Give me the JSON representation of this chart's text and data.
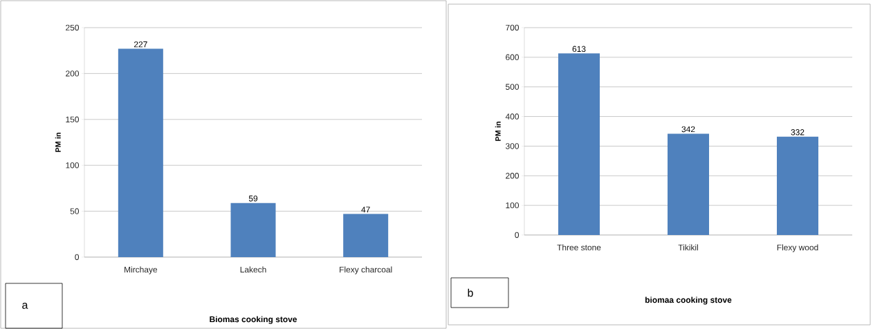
{
  "chart_data": [
    {
      "type": "bar",
      "xlabel": "Biomas cooking stove",
      "ylabel": "PM in",
      "categories": [
        "Mirchaye",
        "Lakech",
        "Flexy charcoal"
      ],
      "values": [
        227,
        59,
        47
      ],
      "color": "#4f81bd",
      "ylim": [
        0,
        250
      ],
      "yticks": [
        0,
        50,
        100,
        150,
        200,
        250
      ],
      "grid": "y",
      "data_labels": true,
      "annotations": [
        "a"
      ]
    },
    {
      "type": "bar",
      "xlabel": "biomaa cooking stove",
      "ylabel": "PM in",
      "categories": [
        "Three stone",
        "Tikikil",
        "Flexy wood"
      ],
      "values": [
        613,
        342,
        332
      ],
      "color": "#4f81bd",
      "ylim": [
        0,
        700
      ],
      "yticks": [
        0,
        100,
        200,
        300,
        400,
        500,
        600,
        700
      ],
      "grid": "y",
      "data_labels": true,
      "annotations": [
        "b"
      ]
    }
  ]
}
